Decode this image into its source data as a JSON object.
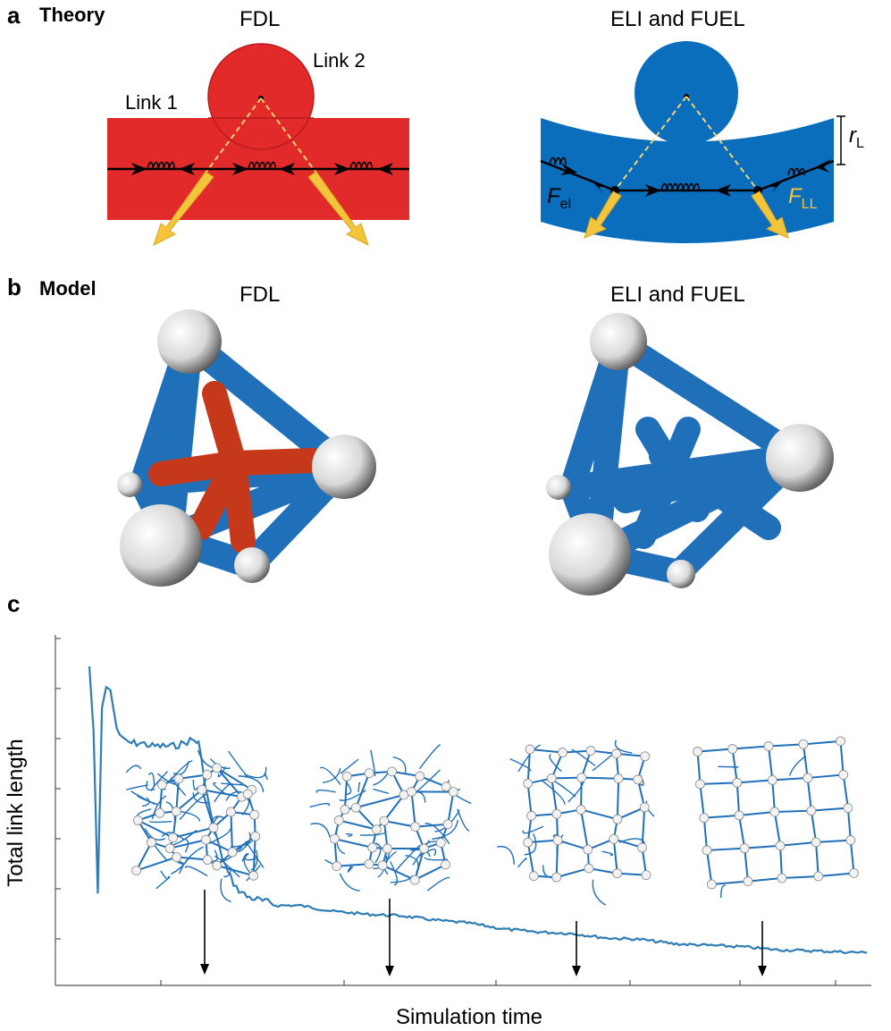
{
  "panel_a": {
    "letter": "a",
    "title": "Theory",
    "left_title": "FDL",
    "right_title": "ELI and FUEL",
    "link1_label": "Link 1",
    "link2_label": "Link 2",
    "r_label_main": "r",
    "r_label_sub": "L",
    "f_el_main": "F",
    "f_el_sub": "el",
    "f_ll_main": "F",
    "f_ll_sub": "LL",
    "colors": {
      "fdl": "#e32a2b",
      "eli": "#0a6ebd",
      "force": "#f4c43c"
    }
  },
  "panel_b": {
    "letter": "b",
    "title": "Model",
    "left_title": "FDL",
    "right_title": "ELI and FUEL",
    "colors": {
      "link": "#1f6fb9",
      "inner_link": "#c5391a",
      "node": "#e6e6e6"
    }
  },
  "panel_c": {
    "letter": "c",
    "chart_data": {
      "type": "line",
      "xlabel": "Simulation time",
      "ylabel": "Total link length",
      "series": [
        {
          "name": "",
          "color": "#2f7db5",
          "points": [
            [
              0.0,
              0.99
            ],
            [
              0.02,
              0.77
            ],
            [
              0.04,
              0.22
            ],
            [
              0.06,
              0.85
            ],
            [
              0.08,
              0.92
            ],
            [
              0.1,
              0.91
            ],
            [
              0.13,
              0.78
            ],
            [
              0.16,
              0.74
            ],
            [
              0.2,
              0.73
            ],
            [
              0.25,
              0.73
            ],
            [
              0.3,
              0.72
            ],
            [
              0.35,
              0.72
            ],
            [
              0.4,
              0.72
            ],
            [
              0.45,
              0.73
            ],
            [
              0.48,
              0.74
            ],
            [
              0.5,
              0.74
            ],
            [
              0.52,
              0.73
            ],
            [
              0.55,
              0.6
            ],
            [
              0.58,
              0.48
            ],
            [
              0.62,
              0.37
            ],
            [
              0.66,
              0.29
            ],
            [
              0.7,
              0.24
            ],
            [
              0.75,
              0.21
            ],
            [
              0.8,
              0.2
            ],
            [
              0.85,
              0.19
            ],
            [
              0.9,
              0.18
            ],
            [
              0.95,
              0.18
            ]
          ],
          "points_tail": [
            [
              1.0,
              0.18
            ],
            [
              1.3,
              0.16
            ],
            [
              1.6,
              0.15
            ],
            [
              1.9,
              0.145
            ],
            [
              2.2,
              0.13
            ],
            [
              2.5,
              0.12
            ],
            [
              2.8,
              0.1
            ],
            [
              3.1,
              0.09
            ],
            [
              3.4,
              0.085
            ],
            [
              3.7,
              0.07
            ],
            [
              4.0,
              0.065
            ],
            [
              4.3,
              0.05
            ],
            [
              4.6,
              0.045
            ],
            [
              4.9,
              0.04
            ],
            [
              5.2,
              0.03
            ],
            [
              5.6,
              0.025
            ],
            [
              6.0,
              0.02
            ]
          ]
        }
      ],
      "x_ticks": 7,
      "y_ticks": 7,
      "grid": false,
      "legend": "none",
      "insets": [
        "FDL network snapshot",
        "intermediate snapshot 1",
        "intermediate snapshot 2",
        "lattice snapshot"
      ]
    }
  }
}
